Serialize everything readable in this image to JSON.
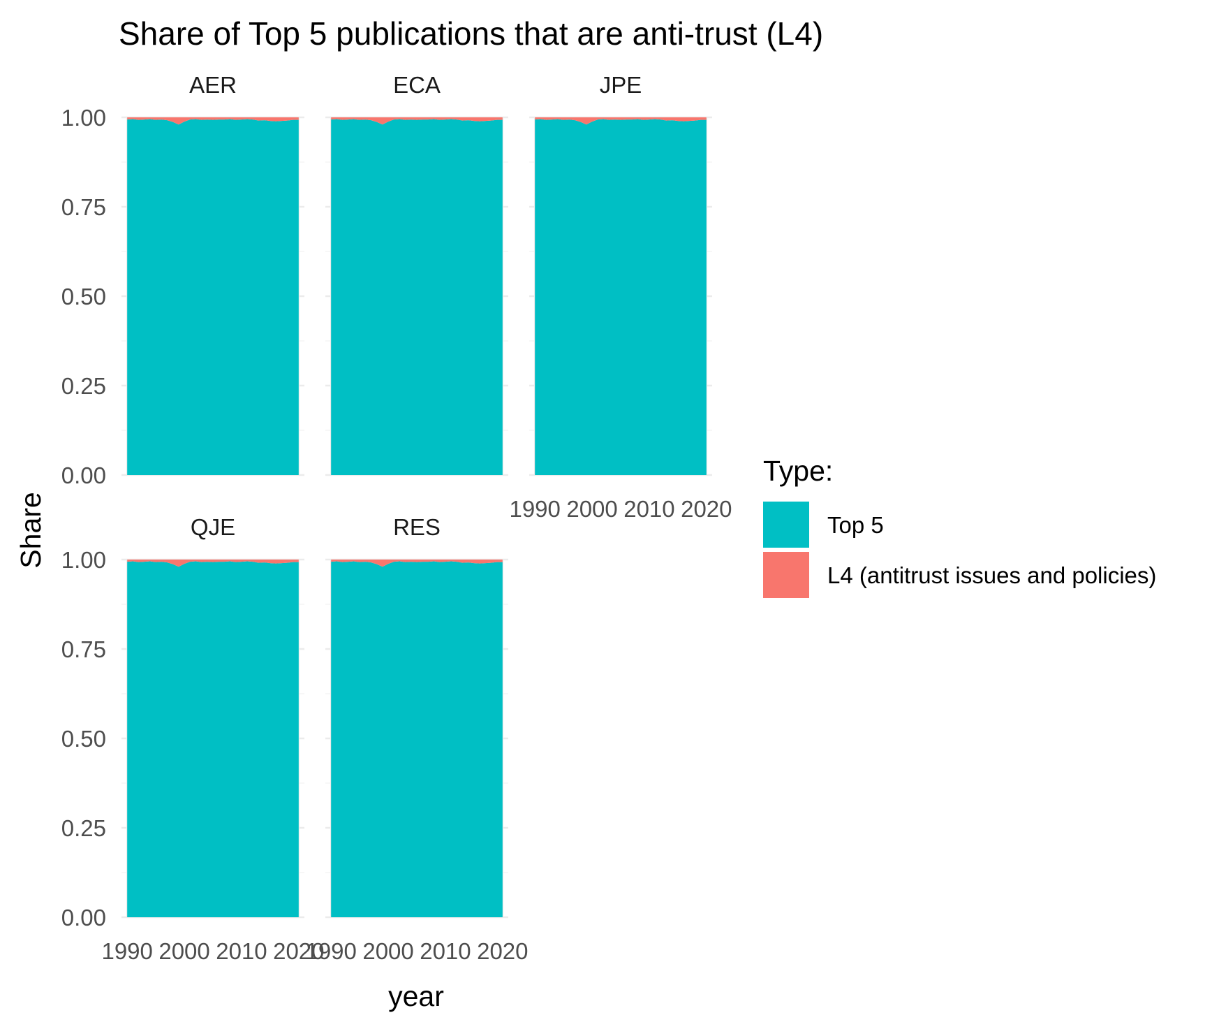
{
  "chart_data": {
    "type": "area",
    "title": "Share of Top 5 publications that are anti-trust (L4)",
    "xlabel": "year",
    "ylabel": "Share",
    "xlim": [
      1989,
      2021
    ],
    "ylim": [
      0,
      1
    ],
    "x_ticks": [
      1990,
      2000,
      2010,
      2020
    ],
    "x_tick_labels": [
      "1990",
      "2000",
      "2010",
      "2020"
    ],
    "y_ticks": [
      0,
      0.25,
      0.5,
      0.75,
      1
    ],
    "y_tick_labels": [
      "0.00",
      "0.25",
      "0.50",
      "0.75",
      "1.00"
    ],
    "stacked": true,
    "grid": true,
    "legend": {
      "title": "Type:",
      "position": "right",
      "entries": [
        {
          "label": "Top 5",
          "color": "#00BFC4"
        },
        {
          "label": "L4 (antitrust issues and policies)",
          "color": "#F8766D"
        }
      ]
    },
    "facets": [
      "AER",
      "ECA",
      "JPE",
      "QJE",
      "RES"
    ],
    "x": [
      1990,
      1991,
      1992,
      1993,
      1994,
      1995,
      1996,
      1997,
      1998,
      1999,
      2000,
      2001,
      2002,
      2003,
      2004,
      2005,
      2006,
      2007,
      2008,
      2009,
      2010,
      2011,
      2012,
      2013,
      2014,
      2015,
      2016,
      2017,
      2018,
      2019,
      2020
    ],
    "series": [
      {
        "name": "Top 5",
        "color": "#00BFC4",
        "values": [
          0.994,
          0.995,
          0.993,
          0.994,
          0.995,
          0.993,
          0.994,
          0.992,
          0.987,
          0.98,
          0.988,
          0.994,
          0.995,
          0.993,
          0.994,
          0.993,
          0.994,
          0.994,
          0.995,
          0.993,
          0.994,
          0.995,
          0.994,
          0.991,
          0.992,
          0.99,
          0.989,
          0.99,
          0.991,
          0.993,
          0.993
        ]
      },
      {
        "name": "L4 (antitrust issues and policies)",
        "color": "#F8766D",
        "values": [
          0.006,
          0.005,
          0.007,
          0.006,
          0.005,
          0.007,
          0.006,
          0.008,
          0.013,
          0.02,
          0.012,
          0.006,
          0.005,
          0.007,
          0.006,
          0.007,
          0.006,
          0.006,
          0.005,
          0.007,
          0.006,
          0.005,
          0.006,
          0.009,
          0.008,
          0.01,
          0.011,
          0.01,
          0.009,
          0.007,
          0.007
        ]
      }
    ]
  }
}
